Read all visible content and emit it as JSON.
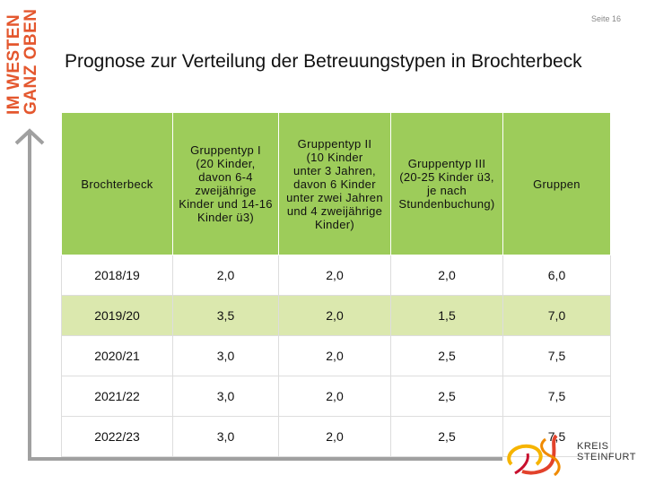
{
  "page_number": "Seite 16",
  "slogan": [
    "IM WESTEN",
    "GANZ OBEN"
  ],
  "title": "Prognose zur Verteilung der Betreuungstypen in Brochterbeck",
  "table": {
    "header": [
      "Brochterbeck",
      "Gruppentyp I\n(20 Kinder,\ndavon 6-4\nzweijährige\nKinder und 14-16\nKinder ü3)",
      "Gruppentyp II\n(10 Kinder\nunter 3 Jahren,\ndavon 6 Kinder\nunter zwei Jahren\nund 4 zweijährige\nKinder)",
      "Gruppentyp III\n(20-25 Kinder ü3,\nje nach\nStundenbuchung)",
      "Gruppen"
    ],
    "rows": [
      [
        "2018/19",
        "2,0",
        "2,0",
        "2,0",
        "6,0"
      ],
      [
        "2019/20",
        "3,5",
        "2,0",
        "1,5",
        "7,0"
      ],
      [
        "2020/21",
        "3,0",
        "2,0",
        "2,5",
        "7,5"
      ],
      [
        "2021/22",
        "3,0",
        "2,0",
        "2,5",
        "7,5"
      ],
      [
        "2022/23",
        "3,0",
        "2,0",
        "2,5",
        "7,5"
      ]
    ],
    "highlighted_row": 1
  },
  "logo": [
    "KREIS",
    "STEINFURT"
  ]
}
